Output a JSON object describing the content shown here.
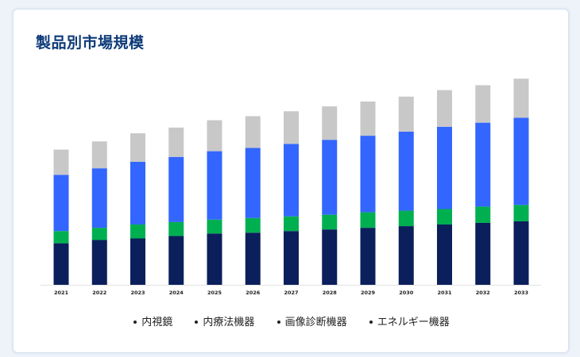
{
  "title": "製品別市場規模",
  "colors": {
    "series": [
      "#0b1f5c",
      "#00b050",
      "#3366ff",
      "#c8c8c8"
    ],
    "title": "#0d3a78",
    "card_background": "#ffffff",
    "page_background": "#eef3fa"
  },
  "chart_data": {
    "type": "bar",
    "stacked": true,
    "title": "製品別市場規模",
    "xlabel": "",
    "ylabel": "",
    "grid": false,
    "y_axis_visible": false,
    "ylim": [
      0,
      260
    ],
    "legend_position": "bottom",
    "categories": [
      "2021",
      "2022",
      "2023",
      "2024",
      "2025",
      "2026",
      "2027",
      "2028",
      "2029",
      "2030",
      "2031",
      "2032",
      "2033"
    ],
    "series": [
      {
        "name": "内視鏡",
        "color": "#0b1f5c",
        "values": [
          51,
          55,
          57,
          60,
          63,
          64,
          66,
          68,
          70,
          72,
          74,
          76,
          78
        ]
      },
      {
        "name": "内療法機器",
        "color": "#00b050",
        "values": [
          15,
          15,
          17,
          17,
          17,
          18,
          18,
          18,
          19,
          19,
          19,
          20,
          20
        ]
      },
      {
        "name": "画像診断機器",
        "color": "#3366ff",
        "values": [
          69,
          73,
          77,
          80,
          84,
          86,
          89,
          92,
          94,
          97,
          101,
          103,
          107
        ]
      },
      {
        "name": "エネルギー機器",
        "color": "#c8c8c8",
        "values": [
          31,
          33,
          35,
          36,
          38,
          39,
          40,
          41,
          42,
          43,
          45,
          46,
          48
        ]
      }
    ]
  }
}
